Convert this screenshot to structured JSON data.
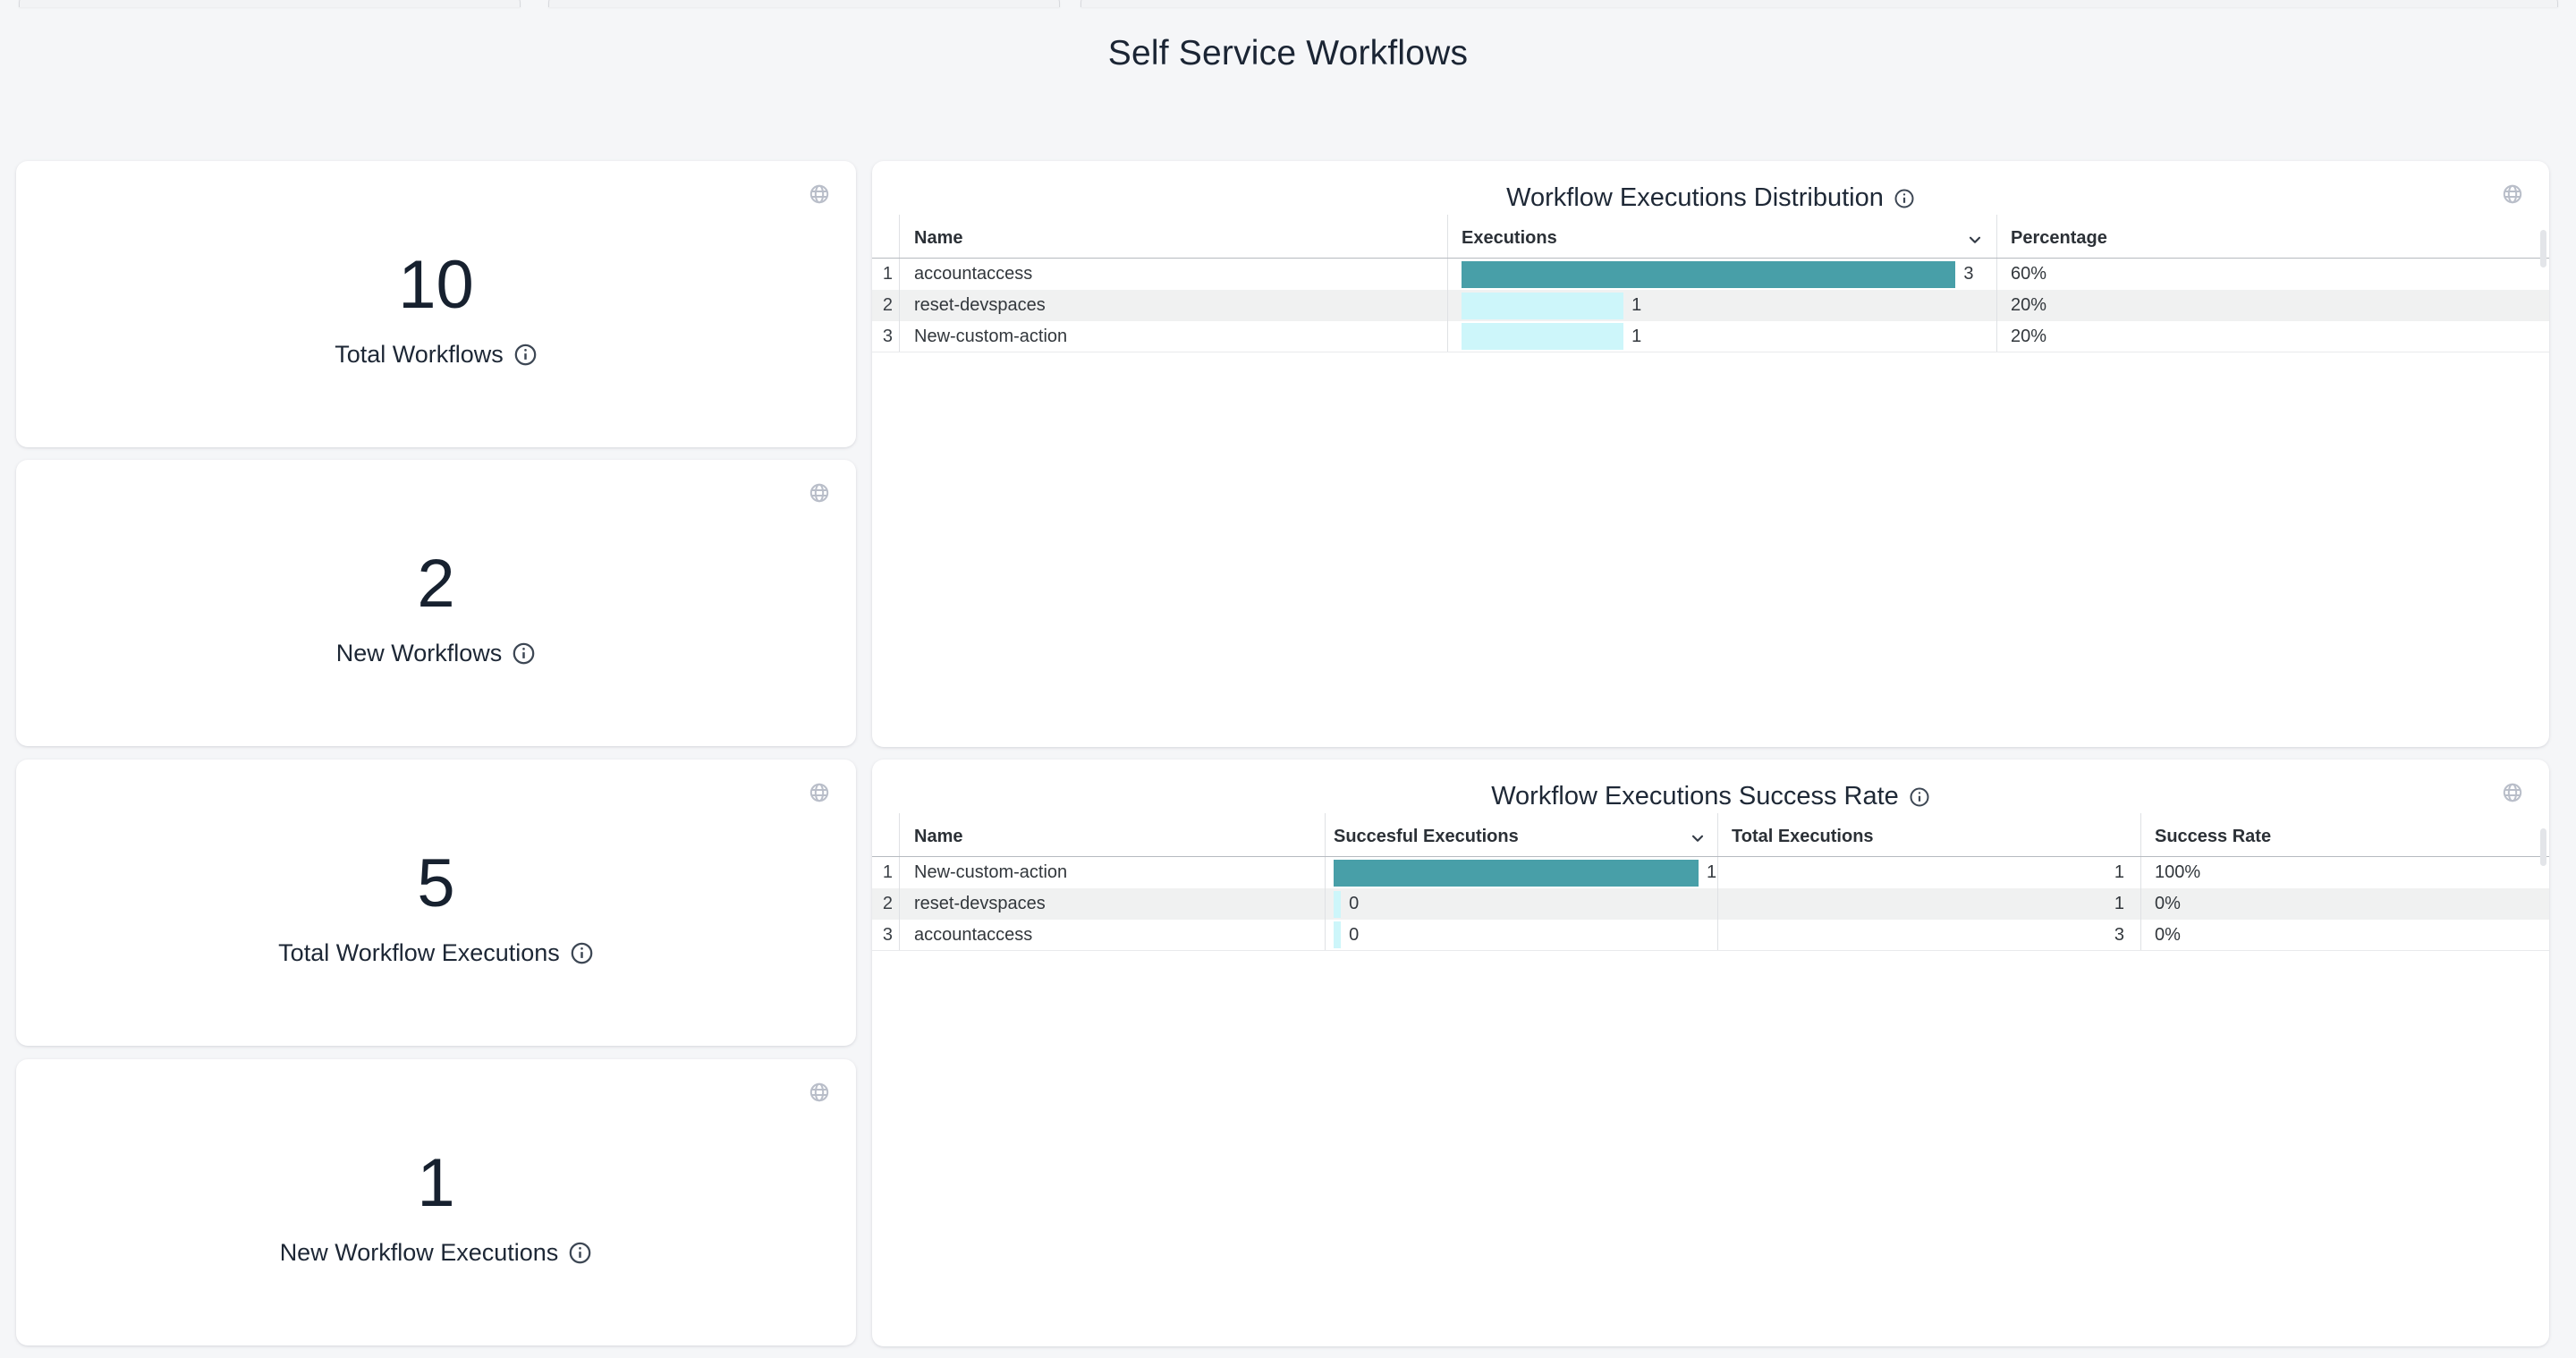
{
  "page": {
    "title": "Self Service Workflows"
  },
  "cards": [
    {
      "value": "10",
      "label": "Total Workflows"
    },
    {
      "value": "2",
      "label": "New Workflows"
    },
    {
      "value": "5",
      "label": "Total Workflow Executions"
    },
    {
      "value": "1",
      "label": "New Workflow Executions"
    }
  ],
  "tables": [
    {
      "title": "Workflow Executions Distribution",
      "columns": [
        "Name",
        "Executions",
        "Percentage"
      ],
      "sorted_column": "Executions",
      "rows": [
        {
          "num": "1",
          "name": "accountaccess",
          "bar_value": "3",
          "bar_pct": 93,
          "bar_color": "#489fa8",
          "percentage": "60%"
        },
        {
          "num": "2",
          "name": "reset-devspaces",
          "bar_value": "1",
          "bar_pct": 30.5,
          "bar_color": "#cdf6fa",
          "percentage": "20%"
        },
        {
          "num": "3",
          "name": "New-custom-action",
          "bar_value": "1",
          "bar_pct": 30.5,
          "bar_color": "#cdf6fa",
          "percentage": "20%"
        }
      ]
    },
    {
      "title": "Workflow Executions Success Rate",
      "columns": [
        "Name",
        "Succesful Executions",
        "Total Executions",
        "Success Rate"
      ],
      "sorted_column": "Succesful Executions",
      "rows": [
        {
          "num": "1",
          "name": "New-custom-action",
          "bar_value": "1",
          "bar_pct": 96,
          "bar_color": "#489fa8",
          "total_executions": "1",
          "success_rate": "100%"
        },
        {
          "num": "2",
          "name": "reset-devspaces",
          "bar_value": "0",
          "bar_pct": 1.9,
          "bar_color": "#cdf6fa",
          "total_executions": "1",
          "success_rate": "0%"
        },
        {
          "num": "3",
          "name": "accountaccess",
          "bar_value": "0",
          "bar_pct": 1.9,
          "bar_color": "#cdf6fa",
          "total_executions": "3",
          "success_rate": "0%"
        }
      ]
    }
  ],
  "icons": {
    "card_action": "globe-icon",
    "metric_info": "info-icon",
    "sort_indicator": "chevron-down-icon"
  },
  "colors": {
    "background": "#f5f6f8",
    "card": "#ffffff",
    "text_primary": "#1b2534",
    "bar_high": "#489fa8",
    "bar_low": "#cdf6fa",
    "row_stripe": "#f0f1f1"
  }
}
